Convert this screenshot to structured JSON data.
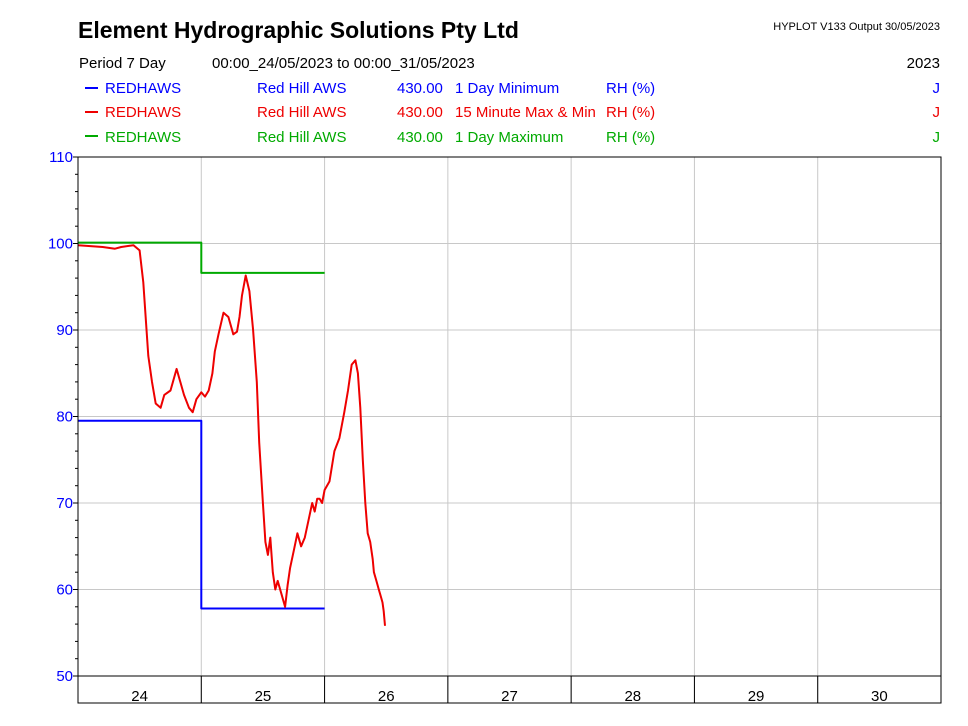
{
  "header": {
    "title": "Element Hydrographic Solutions Pty Ltd",
    "version": "HYPLOT V133  Output 30/05/2023",
    "period_label": "Period  7 Day",
    "period_range": "00:00_24/05/2023 to 00:00_31/05/2023",
    "year": "2023"
  },
  "legend": [
    {
      "site": "REDHAWS",
      "name": "Red Hill AWS",
      "variable": "430.00",
      "stat": "1 Day Minimum",
      "unit": "RH (%)",
      "flag": "J",
      "color": "#0000ff"
    },
    {
      "site": "REDHAWS",
      "name": "Red Hill AWS",
      "variable": "430.00",
      "stat": "15 Minute Max & Min",
      "unit": "RH (%)",
      "flag": "J",
      "color": "#ee0000"
    },
    {
      "site": "REDHAWS",
      "name": "Red Hill AWS",
      "variable": "430.00",
      "stat": "1 Day Maximum",
      "unit": "RH (%)",
      "flag": "J",
      "color": "#00aa00"
    }
  ],
  "chart_data": {
    "type": "line",
    "title": "Element Hydrographic Solutions Pty Ltd",
    "xlabel": "",
    "ylabel": "",
    "xlim": [
      24,
      31
    ],
    "ylim": [
      50,
      110
    ],
    "y_ticks": [
      50,
      60,
      70,
      80,
      90,
      100,
      110
    ],
    "x_tick_labels": [
      "24",
      "25",
      "26",
      "27",
      "28",
      "29",
      "30"
    ],
    "grid": true,
    "series": [
      {
        "name": "1 Day Minimum",
        "color": "#0000ff",
        "step": true,
        "x": [
          24,
          25,
          25,
          26
        ],
        "y": [
          79.5,
          79.5,
          57.8,
          57.8
        ]
      },
      {
        "name": "1 Day Maximum",
        "color": "#00aa00",
        "step": true,
        "x": [
          24,
          25,
          25,
          26
        ],
        "y": [
          100.1,
          100.1,
          96.6,
          96.6
        ]
      },
      {
        "name": "15 Minute Max & Min",
        "color": "#ee0000",
        "step": false,
        "x": [
          24.0,
          24.1,
          24.2,
          24.3,
          24.35,
          24.45,
          24.5,
          24.53,
          24.57,
          24.6,
          24.63,
          24.67,
          24.7,
          24.75,
          24.8,
          24.83,
          24.86,
          24.9,
          24.93,
          24.96,
          25.0,
          25.03,
          25.06,
          25.09,
          25.11,
          25.14,
          25.18,
          25.22,
          25.26,
          25.29,
          25.31,
          25.33,
          25.36,
          25.39,
          25.42,
          25.45,
          25.47,
          25.5,
          25.52,
          25.54,
          25.56,
          25.58,
          25.6,
          25.62,
          25.65,
          25.68,
          25.7,
          25.72,
          25.75,
          25.78,
          25.81,
          25.84,
          25.87,
          25.9,
          25.92,
          25.94,
          25.96,
          25.98,
          26.0,
          26.04,
          26.08,
          26.12,
          26.16,
          26.19,
          26.22,
          26.25,
          26.27,
          26.29,
          26.31,
          26.33,
          26.35,
          26.37,
          26.39,
          26.4,
          26.42,
          26.44,
          26.46,
          26.47,
          26.48,
          26.49
        ],
        "y": [
          99.8,
          99.7,
          99.6,
          99.4,
          99.6,
          99.8,
          99.2,
          95.5,
          87.0,
          84.0,
          81.5,
          81.0,
          82.5,
          83.0,
          85.5,
          84.0,
          82.5,
          81.0,
          80.5,
          82.0,
          82.8,
          82.3,
          83.0,
          85.0,
          87.5,
          89.5,
          92.0,
          91.5,
          89.5,
          89.8,
          91.5,
          94.0,
          96.3,
          94.5,
          90.0,
          84.0,
          77.0,
          70.0,
          65.5,
          64.0,
          66.0,
          62.0,
          60.0,
          61.0,
          59.5,
          58.0,
          60.5,
          62.5,
          64.5,
          66.5,
          65.0,
          66.0,
          68.0,
          70.0,
          69.0,
          70.5,
          70.5,
          70.0,
          71.5,
          72.5,
          76.0,
          77.5,
          80.5,
          83.0,
          86.0,
          86.5,
          85.0,
          81.0,
          75.0,
          70.0,
          66.5,
          65.5,
          63.5,
          62.0,
          61.0,
          60.0,
          59.0,
          58.5,
          57.5,
          55.8
        ]
      }
    ]
  }
}
